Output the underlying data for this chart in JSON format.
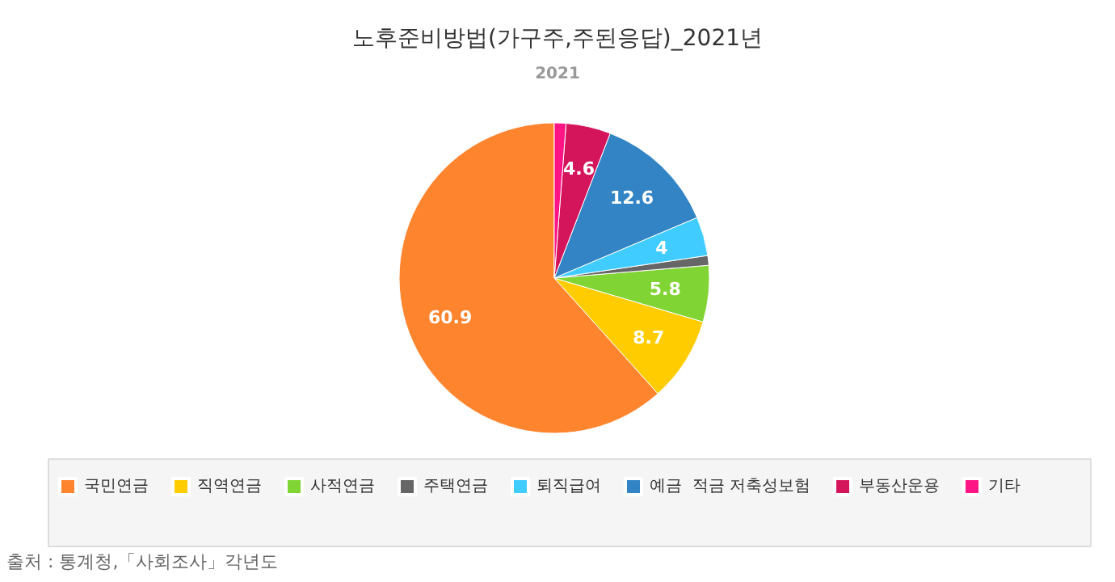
{
  "chart_data": {
    "type": "pie",
    "title": "노후준비방법(가구주,주된응답)_2021년",
    "subtitle": "2021",
    "categories": [
      "국민연금",
      "직역연금",
      "사적연금",
      "주택연금",
      "퇴직급여",
      "예금  적금 저축성보험",
      "부동산운용",
      "기타"
    ],
    "values": [
      60.9,
      8.7,
      5.8,
      1.0,
      4,
      12.6,
      4.6,
      1.2
    ],
    "value_labels": [
      "60.9",
      "8.7",
      "5.8",
      null,
      "4",
      "12.6",
      "4.6",
      null
    ],
    "colors": [
      "#ff842e",
      "#ffcc00",
      "#80d433",
      "#666666",
      "#40ccff",
      "#3384c4",
      "#d4155c",
      "#ff1485"
    ],
    "legend": "bottom",
    "annotations": [
      "출처 : 통계청,「사회조사」각년도"
    ]
  }
}
